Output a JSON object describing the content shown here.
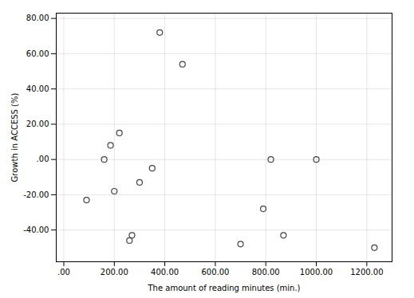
{
  "chart_data": {
    "type": "scatter",
    "x": [
      90,
      160,
      185,
      200,
      220,
      260,
      270,
      300,
      350,
      380,
      470,
      700,
      790,
      820,
      870,
      1000,
      1230
    ],
    "y": [
      -23,
      0,
      8,
      -18,
      15,
      -46,
      -43,
      -13,
      -5,
      72,
      54,
      -48,
      -28,
      0,
      -43,
      0,
      -50
    ],
    "xlabel": "The amount of reading minutes (min.)",
    "ylabel": "Growth in ACCESS (%)",
    "xlim": [
      -30,
      1300
    ],
    "ylim": [
      -58,
      83
    ],
    "xticks": [
      {
        "value": 0,
        "label": ".00"
      },
      {
        "value": 200,
        "label": "200.00"
      },
      {
        "value": 400,
        "label": "400.00"
      },
      {
        "value": 600,
        "label": "600.00"
      },
      {
        "value": 800,
        "label": "800.00"
      },
      {
        "value": 1000,
        "label": "1000.00"
      },
      {
        "value": 1200,
        "label": "1200.00"
      }
    ],
    "yticks": [
      {
        "value": -40,
        "label": "-40.00"
      },
      {
        "value": -20,
        "label": "-20.00"
      },
      {
        "value": 0,
        "label": ".00"
      },
      {
        "value": 20,
        "label": "20.00"
      },
      {
        "value": 40,
        "label": "40.00"
      },
      {
        "value": 60,
        "label": "60.00"
      },
      {
        "value": 80,
        "label": "80.00"
      }
    ],
    "color": "#444444",
    "grid": true
  }
}
